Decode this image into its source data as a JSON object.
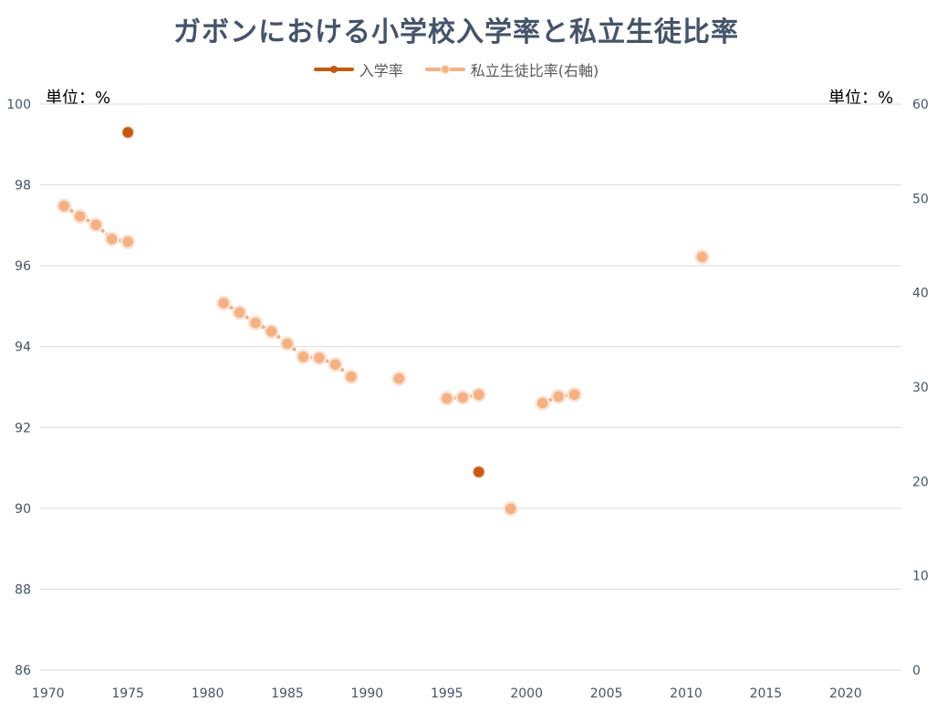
{
  "chart_data": {
    "type": "line",
    "title": "ガボンにおける小学校入学率と私立生徒比率",
    "unit_left": "単位：%",
    "unit_right": "単位：%",
    "x_ticks": [
      1970,
      1975,
      1980,
      1985,
      1990,
      1995,
      2000,
      2005,
      2010,
      2015,
      2020
    ],
    "y_left": {
      "ticks": [
        86,
        88,
        90,
        92,
        94,
        96,
        98,
        100
      ],
      "ylim": [
        86,
        100
      ]
    },
    "y_right": {
      "ticks": [
        0,
        10,
        20,
        30,
        40,
        50,
        60
      ],
      "ylim": [
        0,
        60
      ]
    },
    "grid": true,
    "legend_position": "top",
    "series": [
      {
        "name": "入学率",
        "axis": "left",
        "color": "#C55A11",
        "points": [
          [
            1975,
            99.3
          ],
          [
            1997,
            90.9
          ]
        ]
      },
      {
        "name": "私立生徒比率(右軸)",
        "axis": "right",
        "color": "#F4B183",
        "points": [
          [
            1971,
            49.2
          ],
          [
            1972,
            48.1
          ],
          [
            1973,
            47.2
          ],
          [
            1974,
            45.7
          ],
          [
            1975,
            45.4
          ],
          [
            1981,
            38.9
          ],
          [
            1982,
            37.9
          ],
          [
            1983,
            36.8
          ],
          [
            1984,
            35.9
          ],
          [
            1985,
            34.6
          ],
          [
            1986,
            33.2
          ],
          [
            1987,
            33.1
          ],
          [
            1988,
            32.4
          ],
          [
            1989,
            31.1
          ],
          [
            1992,
            30.9
          ],
          [
            1995,
            28.8
          ],
          [
            1996,
            28.9
          ],
          [
            1997,
            29.2
          ],
          [
            1999,
            17.1
          ],
          [
            2001,
            28.3
          ],
          [
            2002,
            29.0
          ],
          [
            2003,
            29.2
          ],
          [
            2011,
            43.8
          ]
        ]
      }
    ]
  }
}
